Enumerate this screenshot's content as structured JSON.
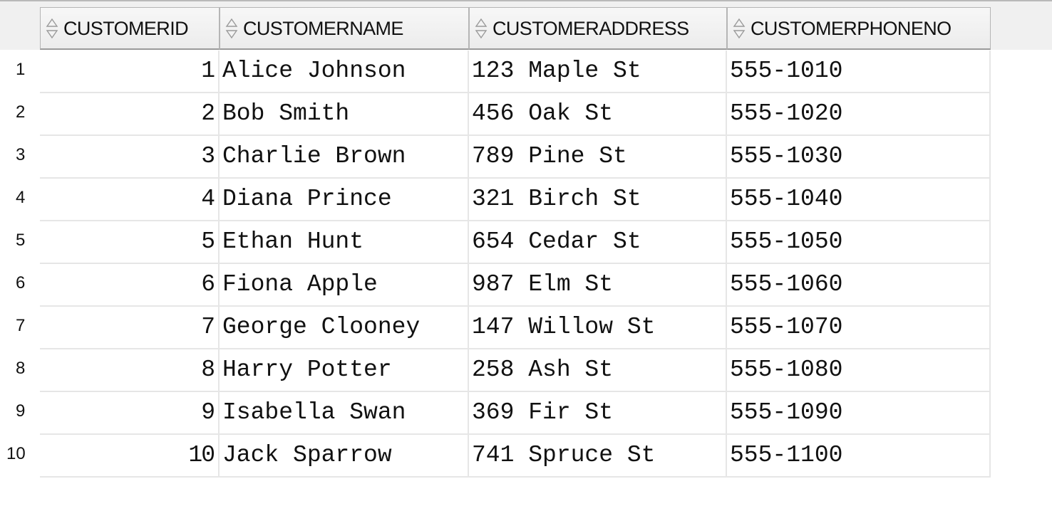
{
  "columns": [
    "CUSTOMERID",
    "CUSTOMERNAME",
    "CUSTOMERADDRESS",
    "CUSTOMERPHONENO"
  ],
  "rows": [
    {
      "num": "1",
      "id": "1",
      "name": "Alice Johnson",
      "address": "123 Maple St",
      "phone": "555-1010"
    },
    {
      "num": "2",
      "id": "2",
      "name": "Bob Smith",
      "address": "456 Oak St",
      "phone": "555-1020"
    },
    {
      "num": "3",
      "id": "3",
      "name": "Charlie Brown",
      "address": "789 Pine St",
      "phone": "555-1030"
    },
    {
      "num": "4",
      "id": "4",
      "name": "Diana Prince",
      "address": "321 Birch St",
      "phone": "555-1040"
    },
    {
      "num": "5",
      "id": "5",
      "name": "Ethan Hunt",
      "address": "654 Cedar St",
      "phone": "555-1050"
    },
    {
      "num": "6",
      "id": "6",
      "name": "Fiona Apple",
      "address": "987 Elm St",
      "phone": "555-1060"
    },
    {
      "num": "7",
      "id": "7",
      "name": "George Clooney",
      "address": "147 Willow St",
      "phone": "555-1070"
    },
    {
      "num": "8",
      "id": "8",
      "name": "Harry Potter",
      "address": "258 Ash St",
      "phone": "555-1080"
    },
    {
      "num": "9",
      "id": "9",
      "name": "Isabella Swan",
      "address": "369 Fir St",
      "phone": "555-1090"
    },
    {
      "num": "10",
      "id": "10",
      "name": "Jack Sparrow",
      "address": "741 Spruce St",
      "phone": "555-1100"
    }
  ],
  "icons": {
    "sort": "sort-updown-icon"
  },
  "colors": {
    "header_bg": "#f0f0f0",
    "grid_line": "#e6e6e6",
    "header_border": "#b5b5b5"
  }
}
